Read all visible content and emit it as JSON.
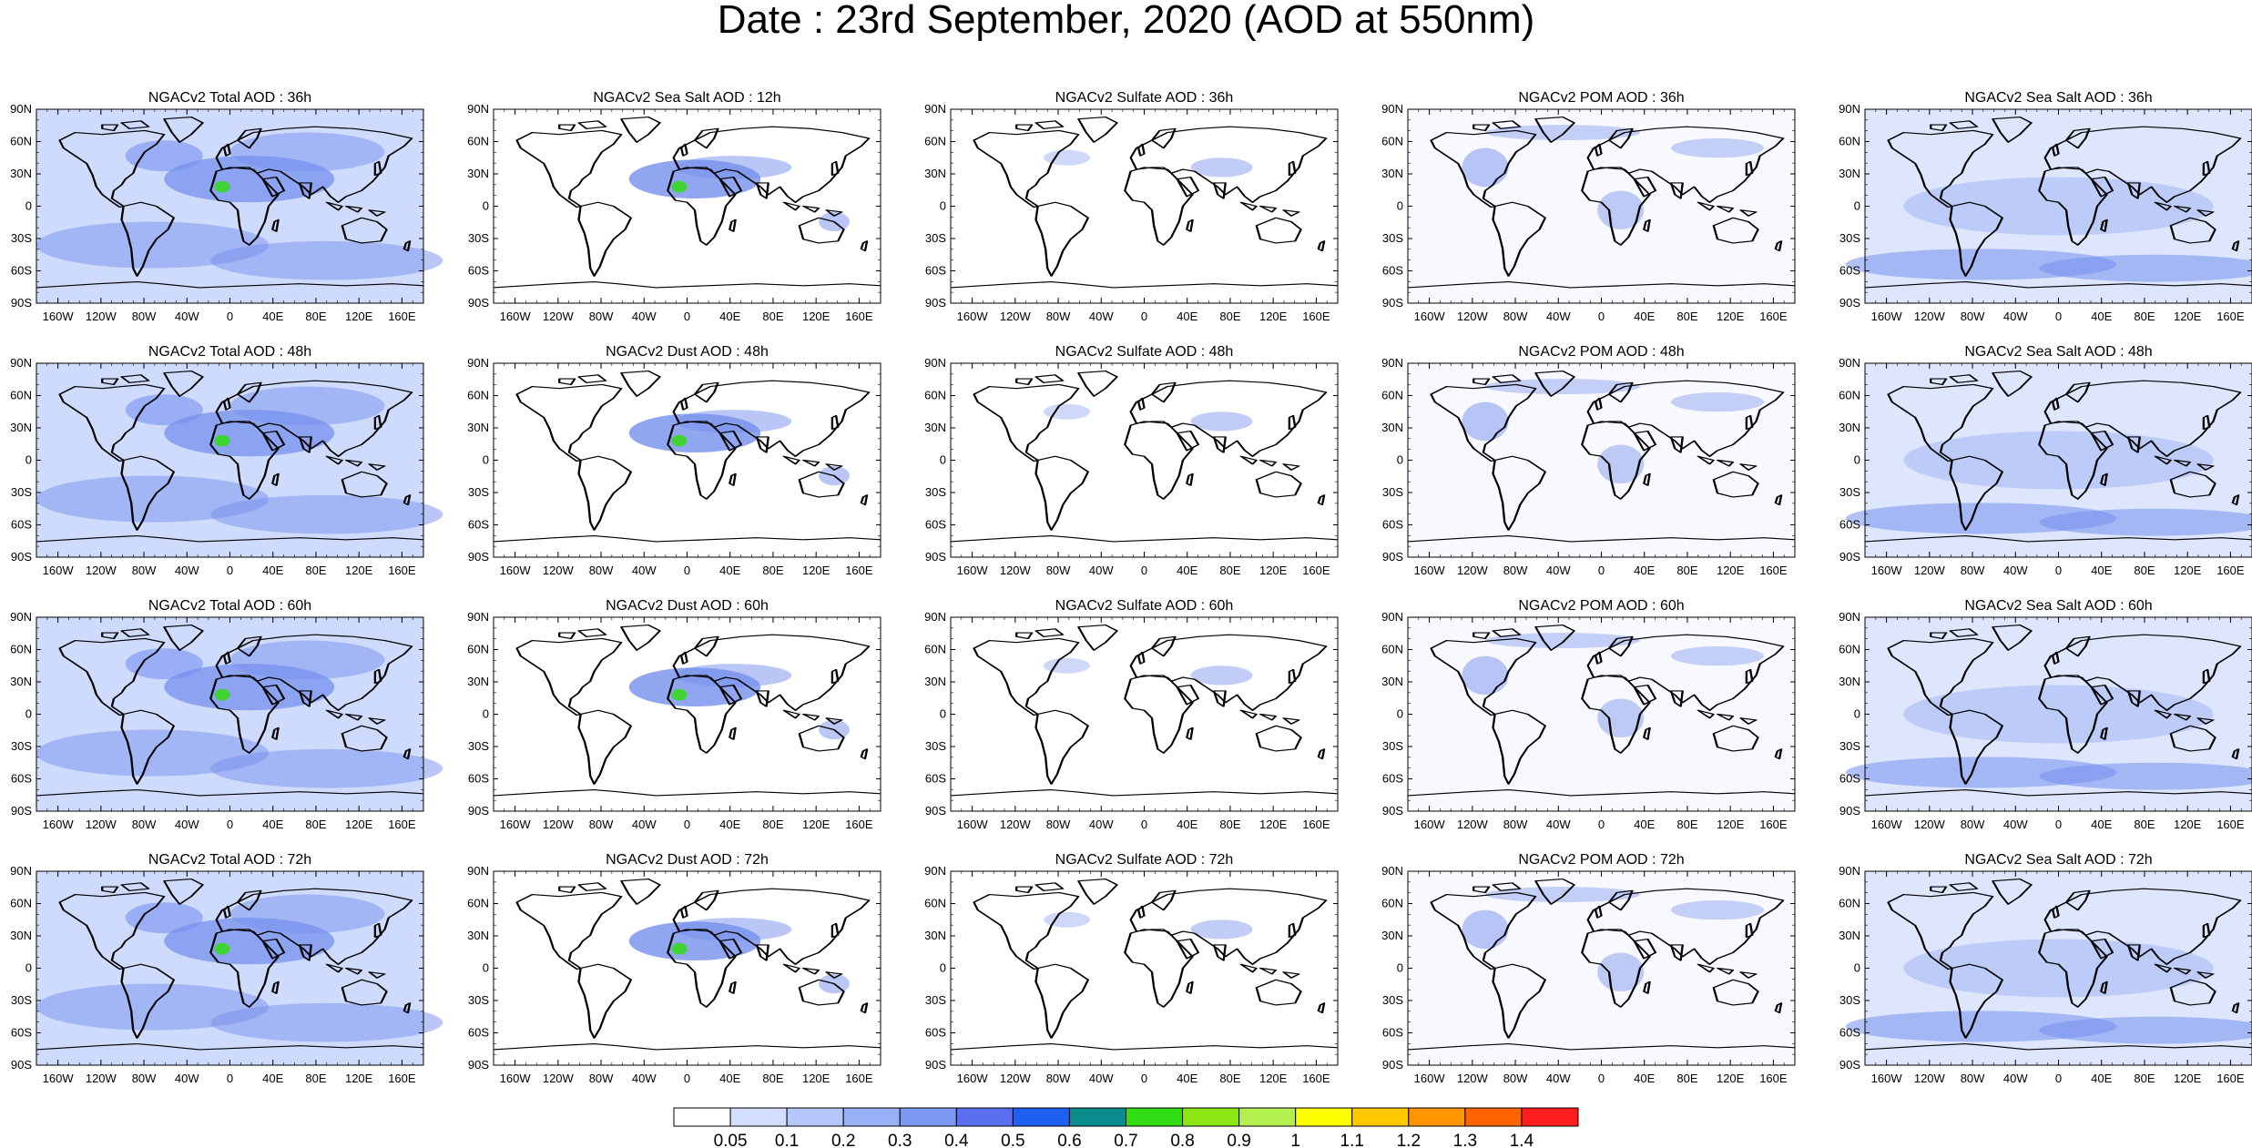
{
  "title": "Date : 23rd  September, 2020 (AOD at 550nm)",
  "panel_titles": [
    [
      "NGACv2 Total AOD : 36h",
      "NGACv2 Sea Salt  AOD : 12h",
      "NGACv2 Sulfate AOD : 36h",
      "NGACv2 POM AOD : 36h",
      "NGACv2 Sea Salt  AOD : 36h"
    ],
    [
      "NGACv2 Total AOD : 48h",
      "NGACv2 Dust AOD : 48h",
      "NGACv2 Sulfate AOD : 48h",
      "NGACv2 POM AOD : 48h",
      "NGACv2 Sea Salt  AOD : 48h"
    ],
    [
      "NGACv2 Total AOD : 60h",
      "NGACv2 Dust AOD : 60h",
      "NGACv2 Sulfate AOD : 60h",
      "NGACv2 POM AOD : 60h",
      "NGACv2 Sea Salt  AOD : 60h"
    ],
    [
      "NGACv2 Total AOD : 72h",
      "NGACv2 Dust AOD : 72h",
      "NGACv2 Sulfate AOD : 72h",
      "NGACv2 POM AOD : 72h",
      "NGACv2 Sea Salt  AOD : 72h"
    ]
  ],
  "lat_labels": [
    "90N",
    "60N",
    "30N",
    "0",
    "30S",
    "60S",
    "90S"
  ],
  "lon_labels": [
    "160W",
    "120W",
    "80W",
    "40W",
    "0",
    "40E",
    "80E",
    "120E",
    "160E"
  ],
  "colorbar": {
    "labels": [
      "0.05",
      "0.1",
      "0.2",
      "0.3",
      "0.4",
      "0.5",
      "0.6",
      "0.7",
      "0.8",
      "0.9",
      "1",
      "1.1",
      "1.2",
      "1.3",
      "1.4"
    ],
    "colors": [
      "#ffffff",
      "#d2ddff",
      "#b4c6fa",
      "#98b0f6",
      "#7d98f1",
      "#5a6ff0",
      "#1e60f0",
      "#0a8c8c",
      "#32dc14",
      "#8ce614",
      "#b4f050",
      "#ffff00",
      "#ffc800",
      "#ff9600",
      "#ff6400",
      "#ff1e1e"
    ]
  },
  "style": {
    "ocean_haze": "#c7d5fb",
    "plume": "#7590ee",
    "coast": "#000000"
  }
}
